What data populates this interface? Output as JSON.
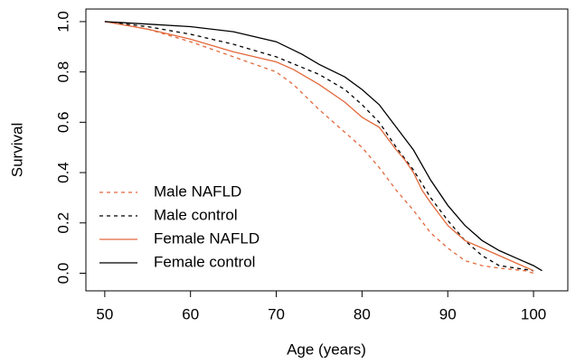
{
  "chart_data": {
    "type": "line",
    "xlabel": "Age (years)",
    "ylabel": "Survival",
    "xlim": [
      47.8,
      104
    ],
    "ylim": [
      -0.07,
      1.05
    ],
    "xticks": [
      50,
      60,
      70,
      80,
      90,
      100
    ],
    "yticks": [
      {
        "value": 0,
        "label": "0.0"
      },
      {
        "value": 0.2,
        "label": "0.2"
      },
      {
        "value": 0.4,
        "label": "0.4"
      },
      {
        "value": 0.6,
        "label": "0.6"
      },
      {
        "value": 0.8,
        "label": "0.8"
      },
      {
        "value": 1,
        "label": "1.0"
      }
    ],
    "legend": "bottom-left",
    "series": [
      {
        "name": "Male NAFLD",
        "color": "#e2683a",
        "linestyle": "dashed",
        "x": [
          50,
          52,
          55,
          60,
          65,
          70,
          72,
          75,
          78,
          80,
          82,
          84,
          86,
          88,
          90,
          92,
          94,
          96,
          99,
          100
        ],
        "values": [
          1.0,
          0.99,
          0.97,
          0.92,
          0.86,
          0.8,
          0.75,
          0.65,
          0.56,
          0.5,
          0.42,
          0.33,
          0.25,
          0.16,
          0.1,
          0.05,
          0.03,
          0.02,
          0.01,
          0.0
        ]
      },
      {
        "name": "Male control",
        "color": "#000000",
        "linestyle": "dashed",
        "x": [
          50,
          55,
          60,
          65,
          70,
          75,
          78,
          80,
          82,
          84,
          86,
          88,
          90,
          92,
          94,
          96,
          98,
          100
        ],
        "values": [
          1.0,
          0.98,
          0.95,
          0.91,
          0.86,
          0.79,
          0.73,
          0.67,
          0.6,
          0.5,
          0.41,
          0.3,
          0.21,
          0.13,
          0.07,
          0.03,
          0.02,
          0.01
        ]
      },
      {
        "name": "Female NAFLD",
        "color": "#e2683a",
        "linestyle": "solid",
        "x": [
          50,
          55,
          60,
          65,
          70,
          72,
          75,
          78,
          80,
          82,
          84,
          85,
          86,
          87,
          88,
          90,
          92,
          94,
          96,
          98,
          100
        ],
        "values": [
          1.0,
          0.97,
          0.93,
          0.88,
          0.84,
          0.81,
          0.75,
          0.68,
          0.62,
          0.58,
          0.49,
          0.45,
          0.4,
          0.33,
          0.28,
          0.19,
          0.13,
          0.1,
          0.07,
          0.04,
          0.01
        ]
      },
      {
        "name": "Female control",
        "color": "#000000",
        "linestyle": "solid",
        "x": [
          50,
          55,
          60,
          65,
          70,
          73,
          75,
          78,
          80,
          82,
          84,
          86,
          88,
          90,
          92,
          94,
          96,
          98,
          100,
          101
        ],
        "values": [
          1.0,
          0.99,
          0.98,
          0.96,
          0.92,
          0.87,
          0.83,
          0.78,
          0.73,
          0.67,
          0.58,
          0.49,
          0.37,
          0.27,
          0.19,
          0.13,
          0.09,
          0.06,
          0.03,
          0.01
        ]
      }
    ]
  }
}
